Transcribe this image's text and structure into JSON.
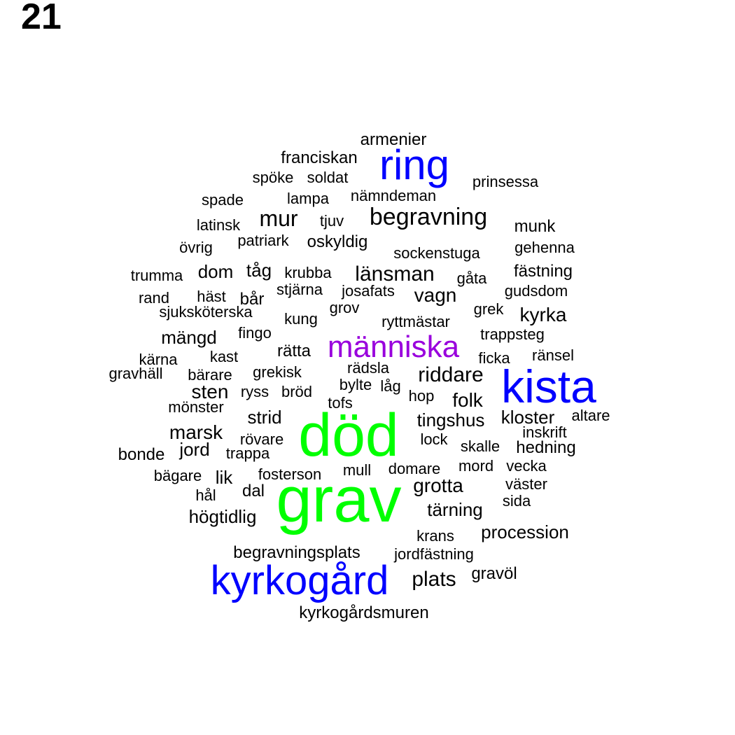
{
  "page_label": "21",
  "colors": {
    "freq_high": "#00ff00",
    "freq_mid": "#0000ff",
    "freq_midlow": "#9900dd",
    "freq_low": "#000000"
  },
  "words": [
    {
      "text": "grav",
      "color": "#00ff00"
    },
    {
      "text": "död",
      "color": "#00ff00"
    },
    {
      "text": "kista",
      "color": "#0000ff"
    },
    {
      "text": "ring",
      "color": "#0000ff"
    },
    {
      "text": "kyrkogård",
      "color": "#0000ff"
    },
    {
      "text": "människa",
      "color": "#9900dd"
    },
    {
      "text": "begravning",
      "color": "#000000"
    },
    {
      "text": "länsman",
      "color": "#000000"
    },
    {
      "text": "mur",
      "color": "#000000"
    },
    {
      "text": "riddare",
      "color": "#000000"
    },
    {
      "text": "plats",
      "color": "#000000"
    },
    {
      "text": "grotta",
      "color": "#000000"
    },
    {
      "text": "folk",
      "color": "#000000"
    },
    {
      "text": "kyrka",
      "color": "#000000"
    },
    {
      "text": "vagn",
      "color": "#000000"
    },
    {
      "text": "sten",
      "color": "#000000"
    },
    {
      "text": "marsk",
      "color": "#000000"
    },
    {
      "text": "tingshus",
      "color": "#000000"
    },
    {
      "text": "kloster",
      "color": "#000000"
    },
    {
      "text": "tärning",
      "color": "#000000"
    },
    {
      "text": "procession",
      "color": "#000000"
    },
    {
      "text": "mängd",
      "color": "#000000"
    },
    {
      "text": "strid",
      "color": "#000000"
    },
    {
      "text": "jord",
      "color": "#000000"
    },
    {
      "text": "högtidlig",
      "color": "#000000"
    },
    {
      "text": "tåg",
      "color": "#000000"
    },
    {
      "text": "dom",
      "color": "#000000"
    },
    {
      "text": "lik",
      "color": "#000000"
    },
    {
      "text": "dal",
      "color": "#000000"
    },
    {
      "text": "armenier",
      "color": "#000000"
    },
    {
      "text": "franciskan",
      "color": "#000000"
    },
    {
      "text": "spöke",
      "color": "#000000"
    },
    {
      "text": "soldat",
      "color": "#000000"
    },
    {
      "text": "prinsessa",
      "color": "#000000"
    },
    {
      "text": "spade",
      "color": "#000000"
    },
    {
      "text": "lampa",
      "color": "#000000"
    },
    {
      "text": "nämndeman",
      "color": "#000000"
    },
    {
      "text": "latinsk",
      "color": "#000000"
    },
    {
      "text": "tjuv",
      "color": "#000000"
    },
    {
      "text": "munk",
      "color": "#000000"
    },
    {
      "text": "övrig",
      "color": "#000000"
    },
    {
      "text": "patriark",
      "color": "#000000"
    },
    {
      "text": "oskyldig",
      "color": "#000000"
    },
    {
      "text": "sockenstuga",
      "color": "#000000"
    },
    {
      "text": "gehenna",
      "color": "#000000"
    },
    {
      "text": "trumma",
      "color": "#000000"
    },
    {
      "text": "krubba",
      "color": "#000000"
    },
    {
      "text": "fästning",
      "color": "#000000"
    },
    {
      "text": "gåta",
      "color": "#000000"
    },
    {
      "text": "rand",
      "color": "#000000"
    },
    {
      "text": "häst",
      "color": "#000000"
    },
    {
      "text": "bår",
      "color": "#000000"
    },
    {
      "text": "stjärna",
      "color": "#000000"
    },
    {
      "text": "josafats",
      "color": "#000000"
    },
    {
      "text": "gudsdom",
      "color": "#000000"
    },
    {
      "text": "sjuksköterska",
      "color": "#000000"
    },
    {
      "text": "grov",
      "color": "#000000"
    },
    {
      "text": "grek",
      "color": "#000000"
    },
    {
      "text": "kung",
      "color": "#000000"
    },
    {
      "text": "ryttmästar",
      "color": "#000000"
    },
    {
      "text": "fingo",
      "color": "#000000"
    },
    {
      "text": "trappsteg",
      "color": "#000000"
    },
    {
      "text": "kärna",
      "color": "#000000"
    },
    {
      "text": "kast",
      "color": "#000000"
    },
    {
      "text": "rätta",
      "color": "#000000"
    },
    {
      "text": "ficka",
      "color": "#000000"
    },
    {
      "text": "ränsel",
      "color": "#000000"
    },
    {
      "text": "gravhäll",
      "color": "#000000"
    },
    {
      "text": "bärare",
      "color": "#000000"
    },
    {
      "text": "grekisk",
      "color": "#000000"
    },
    {
      "text": "rädsla",
      "color": "#000000"
    },
    {
      "text": "bylte",
      "color": "#000000"
    },
    {
      "text": "låg",
      "color": "#000000"
    },
    {
      "text": "ryss",
      "color": "#000000"
    },
    {
      "text": "bröd",
      "color": "#000000"
    },
    {
      "text": "hop",
      "color": "#000000"
    },
    {
      "text": "mönster",
      "color": "#000000"
    },
    {
      "text": "tofs",
      "color": "#000000"
    },
    {
      "text": "altare",
      "color": "#000000"
    },
    {
      "text": "inskrift",
      "color": "#000000"
    },
    {
      "text": "rövare",
      "color": "#000000"
    },
    {
      "text": "lock",
      "color": "#000000"
    },
    {
      "text": "skalle",
      "color": "#000000"
    },
    {
      "text": "hedning",
      "color": "#000000"
    },
    {
      "text": "bonde",
      "color": "#000000"
    },
    {
      "text": "trappa",
      "color": "#000000"
    },
    {
      "text": "mord",
      "color": "#000000"
    },
    {
      "text": "vecka",
      "color": "#000000"
    },
    {
      "text": "bägare",
      "color": "#000000"
    },
    {
      "text": "fosterson",
      "color": "#000000"
    },
    {
      "text": "mull",
      "color": "#000000"
    },
    {
      "text": "domare",
      "color": "#000000"
    },
    {
      "text": "väster",
      "color": "#000000"
    },
    {
      "text": "hål",
      "color": "#000000"
    },
    {
      "text": "sida",
      "color": "#000000"
    },
    {
      "text": "krans",
      "color": "#000000"
    },
    {
      "text": "begravningsplats",
      "color": "#000000"
    },
    {
      "text": "jordfästning",
      "color": "#000000"
    },
    {
      "text": "gravöl",
      "color": "#000000"
    },
    {
      "text": "kyrkogårdsmuren",
      "color": "#000000"
    }
  ]
}
